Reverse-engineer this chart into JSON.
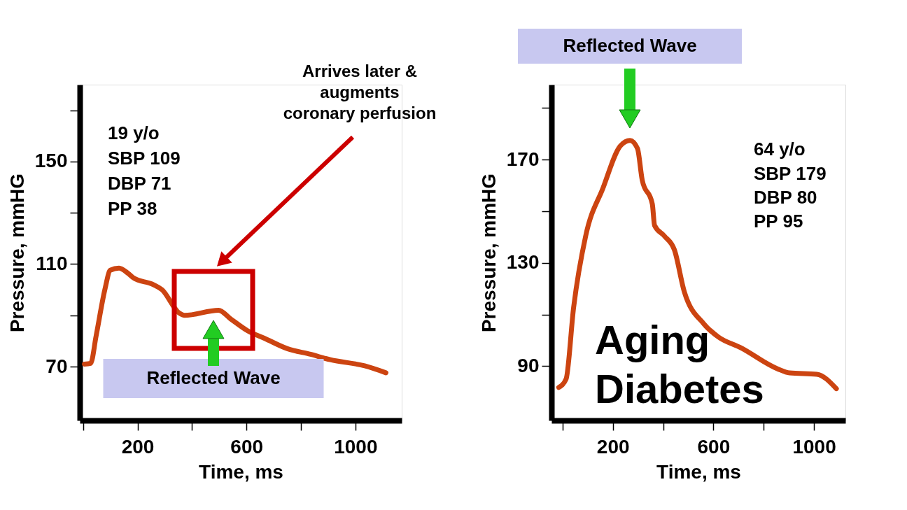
{
  "chart_data": [
    {
      "type": "line",
      "xlabel": "Time, ms",
      "ylabel": "Pressure, mmHG",
      "x": [
        5,
        28,
        48,
        80,
        100,
        132,
        164,
        184,
        258,
        290,
        352,
        373,
        498,
        541,
        604,
        667,
        750,
        835,
        908,
        1034,
        1112
      ],
      "series": [
        {
          "color": "#cc4411",
          "values": [
            71,
            71.3,
            82,
            100,
            107.6,
            108.4,
            106.5,
            104.7,
            102,
            100,
            91,
            90,
            92,
            88.7,
            84,
            81,
            77,
            74.8,
            72.7,
            70.3,
            67.6
          ]
        }
      ],
      "xlim": [
        -12,
        1170
      ],
      "ylim": [
        49,
        180
      ],
      "xticks": [
        {
          "value": 0,
          "label": null
        },
        200,
        {
          "value": 400,
          "label": null
        },
        600,
        {
          "value": 800,
          "label": null
        },
        1000
      ],
      "yticks": [
        70,
        {
          "value": 90,
          "label": null
        },
        110,
        {
          "value": 130,
          "label": null
        },
        150,
        {
          "value": 170,
          "label": null
        }
      ],
      "grid": false,
      "line_style": "solid",
      "annotations": [
        "19 y/o",
        "SBP 109",
        "DBP 71",
        "PP 38",
        "Arrives later &\naugments\ncoronary perfusion",
        "Reflected Wave"
      ]
    },
    {
      "type": "line",
      "xlabel": "Time, ms",
      "ylabel": "Pressure, mmHG",
      "x": [
        -15,
        14,
        44,
        92,
        161,
        230,
        268,
        298,
        317,
        357,
        366,
        405,
        445,
        484,
        562,
        620,
        708,
        855,
        903,
        1011,
        1089
      ],
      "series": [
        {
          "color": "#cc4411",
          "values": [
            81.8,
            85,
            112.7,
            140.4,
            159,
            175.3,
            177.4,
            174.3,
            162,
            152.8,
            144.5,
            140.4,
            135,
            118.9,
            106.4,
            101.3,
            97.2,
            89,
            87.4,
            86.9,
            81.3
          ]
        }
      ],
      "xlim": [
        -44,
        1125
      ],
      "ylim": [
        69,
        199
      ],
      "xticks": [
        {
          "value": 0,
          "label": null
        },
        200,
        {
          "value": 400,
          "label": null
        },
        600,
        {
          "value": 800,
          "label": null
        },
        1000
      ],
      "yticks": [
        90,
        {
          "value": 110,
          "label": null
        },
        130,
        {
          "value": 150,
          "label": null
        },
        170,
        {
          "value": 190,
          "label": null
        }
      ],
      "grid": false,
      "line_style": "solid",
      "annotations": [
        "64 y/o",
        "SBP 179",
        "DBP 80",
        "PP 95",
        "Reflected Wave",
        "Aging",
        "Diabetes"
      ]
    }
  ]
}
